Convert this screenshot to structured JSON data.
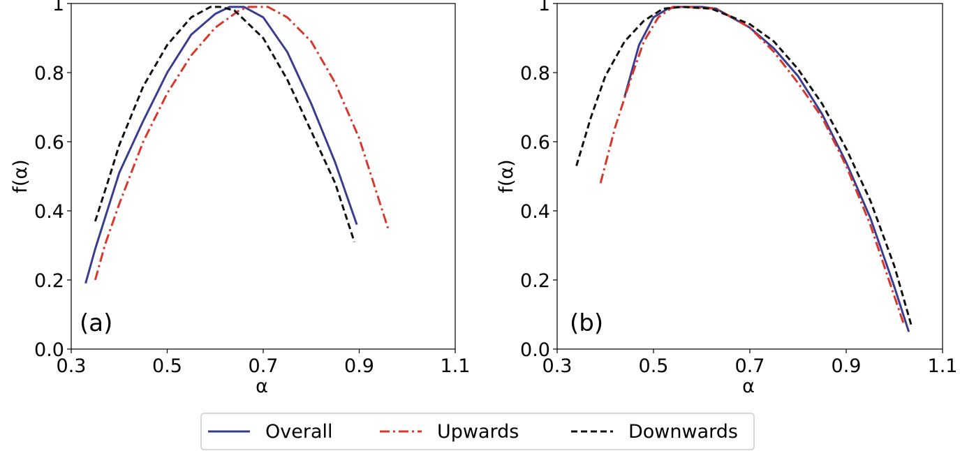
{
  "colors": {
    "overall": "#3a3d8f",
    "upwards": "#d7382c",
    "downwards": "#111111"
  },
  "legend": {
    "placement": "bottom-center",
    "entries": [
      {
        "name": "Overall",
        "style": "solid",
        "color": "#3a3d8f"
      },
      {
        "name": "Upwards",
        "style": "dash-dot",
        "color": "#d7382c"
      },
      {
        "name": "Downwards",
        "style": "dashed",
        "color": "#111111"
      }
    ]
  },
  "chart_data": [
    {
      "type": "line",
      "panel_label": "(a)",
      "xlabel": "α",
      "ylabel": "f(α)",
      "xlim": [
        0.3,
        1.1
      ],
      "ylim": [
        0.0,
        1.0
      ],
      "xticks": [
        "0.3",
        "0.5",
        "0.7",
        "0.9",
        "1.1"
      ],
      "yticks": [
        "0.0",
        "0.2",
        "0.4",
        "0.6",
        "0.8",
        "1"
      ],
      "grid": false,
      "series": [
        {
          "name": "Overall",
          "style": "solid",
          "color": "#3a3d8f",
          "x": [
            0.33,
            0.35,
            0.4,
            0.45,
            0.5,
            0.55,
            0.6,
            0.63,
            0.66,
            0.7,
            0.75,
            0.8,
            0.85,
            0.895
          ],
          "y": [
            0.19,
            0.29,
            0.51,
            0.66,
            0.8,
            0.91,
            0.97,
            0.99,
            0.99,
            0.96,
            0.86,
            0.71,
            0.54,
            0.36
          ]
        },
        {
          "name": "Upwards",
          "style": "dash-dot",
          "color": "#d7382c",
          "x": [
            0.35,
            0.37,
            0.4,
            0.45,
            0.5,
            0.55,
            0.6,
            0.65,
            0.67,
            0.71,
            0.75,
            0.8,
            0.85,
            0.9,
            0.96
          ],
          "y": [
            0.2,
            0.3,
            0.42,
            0.6,
            0.74,
            0.85,
            0.93,
            0.98,
            0.99,
            0.99,
            0.96,
            0.89,
            0.77,
            0.61,
            0.35
          ]
        },
        {
          "name": "Downwards",
          "style": "dashed",
          "color": "#111111",
          "x": [
            0.35,
            0.38,
            0.4,
            0.45,
            0.5,
            0.55,
            0.59,
            0.61,
            0.64,
            0.7,
            0.75,
            0.8,
            0.85,
            0.89
          ],
          "y": [
            0.37,
            0.5,
            0.59,
            0.76,
            0.88,
            0.96,
            0.99,
            0.99,
            0.98,
            0.9,
            0.78,
            0.63,
            0.48,
            0.31
          ]
        }
      ]
    },
    {
      "type": "line",
      "panel_label": "(b)",
      "xlabel": "α",
      "ylabel": "f(α)",
      "xlim": [
        0.3,
        1.1
      ],
      "ylim": [
        0.0,
        1.0
      ],
      "xticks": [
        "0.3",
        "0.5",
        "0.7",
        "0.9",
        "1.1"
      ],
      "yticks": [
        "0.0",
        "0.2",
        "0.4",
        "0.6",
        "0.8",
        "1"
      ],
      "grid": false,
      "series": [
        {
          "name": "Overall",
          "style": "solid",
          "color": "#3a3d8f",
          "x": [
            0.44,
            0.47,
            0.5,
            0.53,
            0.55,
            0.6,
            0.63,
            0.7,
            0.75,
            0.8,
            0.85,
            0.9,
            0.95,
            1.0,
            1.03
          ],
          "y": [
            0.73,
            0.88,
            0.96,
            0.985,
            0.99,
            0.99,
            0.985,
            0.93,
            0.87,
            0.79,
            0.68,
            0.54,
            0.38,
            0.18,
            0.05
          ]
        },
        {
          "name": "Upwards",
          "style": "dash-dot",
          "color": "#d7382c",
          "x": [
            0.39,
            0.42,
            0.45,
            0.48,
            0.51,
            0.54,
            0.57,
            0.63,
            0.7,
            0.75,
            0.8,
            0.85,
            0.9,
            0.95,
            1.02
          ],
          "y": [
            0.48,
            0.64,
            0.77,
            0.89,
            0.96,
            0.99,
            0.99,
            0.985,
            0.93,
            0.86,
            0.77,
            0.67,
            0.53,
            0.36,
            0.07
          ]
        },
        {
          "name": "Downwards",
          "style": "dashed",
          "color": "#111111",
          "x": [
            0.34,
            0.37,
            0.4,
            0.44,
            0.48,
            0.52,
            0.56,
            0.62,
            0.7,
            0.75,
            0.8,
            0.85,
            0.9,
            0.95,
            1.0,
            1.035
          ],
          "y": [
            0.53,
            0.67,
            0.79,
            0.89,
            0.95,
            0.985,
            0.99,
            0.985,
            0.94,
            0.89,
            0.81,
            0.71,
            0.58,
            0.43,
            0.24,
            0.07
          ]
        }
      ]
    }
  ]
}
